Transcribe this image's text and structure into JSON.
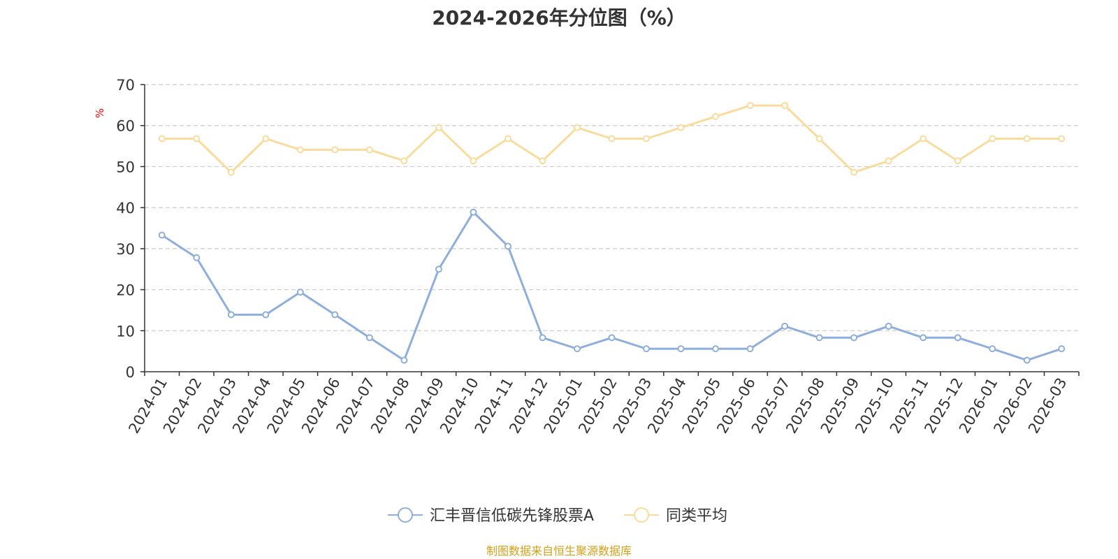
{
  "title": "2024-2026年分位图（%）",
  "source": "制图数据来自恒生聚源数据库",
  "chart_data": {
    "type": "line",
    "title": "2024-2026年分位图（%）",
    "ylabel": "%",
    "ylim": [
      0,
      70
    ],
    "yticks": [
      0,
      10,
      20,
      30,
      40,
      50,
      60,
      70
    ],
    "grid": "horizontal dashed",
    "legend_position": "bottom",
    "categories": [
      "2024-01",
      "2024-02",
      "2024-03",
      "2024-04",
      "2024-05",
      "2024-06",
      "2024-07",
      "2024-08",
      "2024-09",
      "2024-10",
      "2024-11",
      "2024-12",
      "2025-01",
      "2025-02",
      "2025-03",
      "2025-04",
      "2025-05",
      "2025-06",
      "2025-07",
      "2025-08",
      "2025-09",
      "2025-10",
      "2025-11",
      "2025-12",
      "2026-01",
      "2026-02",
      "2026-03"
    ],
    "series": [
      {
        "name": "汇丰晋信低碳先锋股票A",
        "color": "#8eaedb",
        "values": [
          33.3,
          27.8,
          13.9,
          13.9,
          19.4,
          13.9,
          8.3,
          2.8,
          25.0,
          38.9,
          30.6,
          8.3,
          5.6,
          8.3,
          5.6,
          5.6,
          5.6,
          5.6,
          11.1,
          8.3,
          8.3,
          11.1,
          8.3,
          8.3,
          5.6,
          2.8,
          5.6
        ]
      },
      {
        "name": "同类平均",
        "color": "#f9dc9c",
        "values": [
          56.8,
          56.8,
          48.6,
          56.8,
          54.1,
          54.1,
          54.1,
          51.4,
          59.5,
          51.4,
          56.8,
          51.4,
          59.5,
          56.8,
          56.8,
          59.5,
          62.2,
          64.9,
          64.9,
          56.8,
          48.6,
          51.4,
          56.8,
          51.4,
          56.8,
          56.8,
          56.8
        ]
      }
    ]
  }
}
